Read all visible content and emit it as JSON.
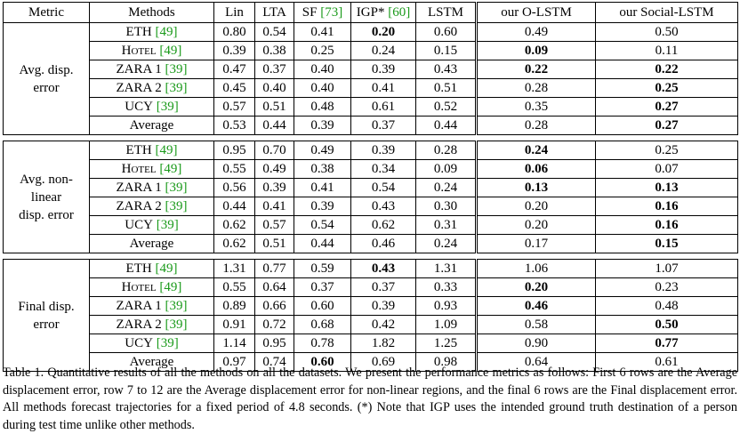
{
  "header": {
    "metric": "Metric",
    "methods": "Methods",
    "lin": "Lin",
    "lta": "LTA",
    "sf": "SF",
    "sf_cite": "[73]",
    "igp": "IGP*",
    "igp_cite": "[60]",
    "lstm": "LSTM",
    "olstm": "our O-LSTM",
    "social": "our Social-LSTM"
  },
  "groups": [
    {
      "metric_line1": "Avg. disp.",
      "metric_line2": "error",
      "rows": [
        {
          "name": "ETH",
          "cite": "[49]",
          "vals": [
            "0.80",
            "0.54",
            "0.41",
            "0.20",
            "0.60",
            "0.49",
            "0.50"
          ],
          "bold": [
            3
          ]
        },
        {
          "name": "Hotel",
          "cite": "[49]",
          "vals": [
            "0.39",
            "0.38",
            "0.25",
            "0.24",
            "0.15",
            "0.09",
            "0.11"
          ],
          "bold": [
            5
          ]
        },
        {
          "name": "ZARA 1",
          "cite": "[39]",
          "vals": [
            "0.47",
            "0.37",
            "0.40",
            "0.39",
            "0.43",
            "0.22",
            "0.22"
          ],
          "bold": [
            5,
            6
          ]
        },
        {
          "name": "ZARA 2",
          "cite": "[39]",
          "vals": [
            "0.45",
            "0.40",
            "0.40",
            "0.41",
            "0.51",
            "0.28",
            "0.25"
          ],
          "bold": [
            6
          ]
        },
        {
          "name": "UCY",
          "cite": "[39]",
          "vals": [
            "0.57",
            "0.51",
            "0.48",
            "0.61",
            "0.52",
            "0.35",
            "0.27"
          ],
          "bold": [
            6
          ]
        },
        {
          "name": "Average",
          "cite": "",
          "vals": [
            "0.53",
            "0.44",
            "0.39",
            "0.37",
            "0.44",
            "0.28",
            "0.27"
          ],
          "bold": [
            6
          ]
        }
      ]
    },
    {
      "metric_line1": "Avg. non-linear",
      "metric_line2": "disp. error",
      "rows": [
        {
          "name": "ETH",
          "cite": "[49]",
          "vals": [
            "0.95",
            "0.70",
            "0.49",
            "0.39",
            "0.28",
            "0.24",
            "0.25"
          ],
          "bold": [
            5
          ]
        },
        {
          "name": "Hotel",
          "cite": "[49]",
          "vals": [
            "0.55",
            "0.49",
            "0.38",
            "0.34",
            "0.09",
            "0.06",
            "0.07"
          ],
          "bold": [
            5
          ]
        },
        {
          "name": "ZARA 1",
          "cite": "[39]",
          "vals": [
            "0.56",
            "0.39",
            "0.41",
            "0.54",
            "0.24",
            "0.13",
            "0.13"
          ],
          "bold": [
            5,
            6
          ]
        },
        {
          "name": "ZARA 2",
          "cite": "[39]",
          "vals": [
            "0.44",
            "0.41",
            "0.39",
            "0.43",
            "0.30",
            "0.20",
            "0.16"
          ],
          "bold": [
            6
          ]
        },
        {
          "name": "UCY",
          "cite": "[39]",
          "vals": [
            "0.62",
            "0.57",
            "0.54",
            "0.62",
            "0.31",
            "0.20",
            "0.16"
          ],
          "bold": [
            6
          ]
        },
        {
          "name": "Average",
          "cite": "",
          "vals": [
            "0.62",
            "0.51",
            "0.44",
            "0.46",
            "0.24",
            "0.17",
            "0.15"
          ],
          "bold": [
            6
          ]
        }
      ]
    },
    {
      "metric_line1": "Final disp.",
      "metric_line2": "error",
      "rows": [
        {
          "name": "ETH",
          "cite": "[49]",
          "vals": [
            "1.31",
            "0.77",
            "0.59",
            "0.43",
            "1.31",
            "1.06",
            "1.07"
          ],
          "bold": [
            3
          ]
        },
        {
          "name": "Hotel",
          "cite": "[49]",
          "vals": [
            "0.55",
            "0.64",
            "0.37",
            "0.37",
            "0.33",
            "0.20",
            "0.23"
          ],
          "bold": [
            5
          ]
        },
        {
          "name": "ZARA 1",
          "cite": "[39]",
          "vals": [
            "0.89",
            "0.66",
            "0.60",
            "0.39",
            "0.93",
            "0.46",
            "0.48"
          ],
          "bold": [
            5
          ]
        },
        {
          "name": "ZARA 2",
          "cite": "[39]",
          "vals": [
            "0.91",
            "0.72",
            "0.68",
            "0.42",
            "1.09",
            "0.58",
            "0.50"
          ],
          "bold": [
            6
          ]
        },
        {
          "name": "UCY",
          "cite": "[39]",
          "vals": [
            "1.14",
            "0.95",
            "0.78",
            "1.82",
            "1.25",
            "0.90",
            "0.77"
          ],
          "bold": [
            6
          ]
        },
        {
          "name": "Average",
          "cite": "",
          "vals": [
            "0.97",
            "0.74",
            "0.60",
            "0.69",
            "0.98",
            "0.64",
            "0.61"
          ],
          "bold": [
            2
          ]
        }
      ]
    }
  ],
  "caption": "Table 1. Quantitative results of all the methods on all the datasets. We present the performance metrics as follows: First 6 rows are the Average displacement error, row 7 to 12 are the Average displacement error for non-linear regions, and the final 6 rows are the Final displacement error. All methods forecast trajectories for a fixed period of 4.8 seconds. (*) Note that IGP uses the intended ground truth destination of a person during test time unlike other methods."
}
